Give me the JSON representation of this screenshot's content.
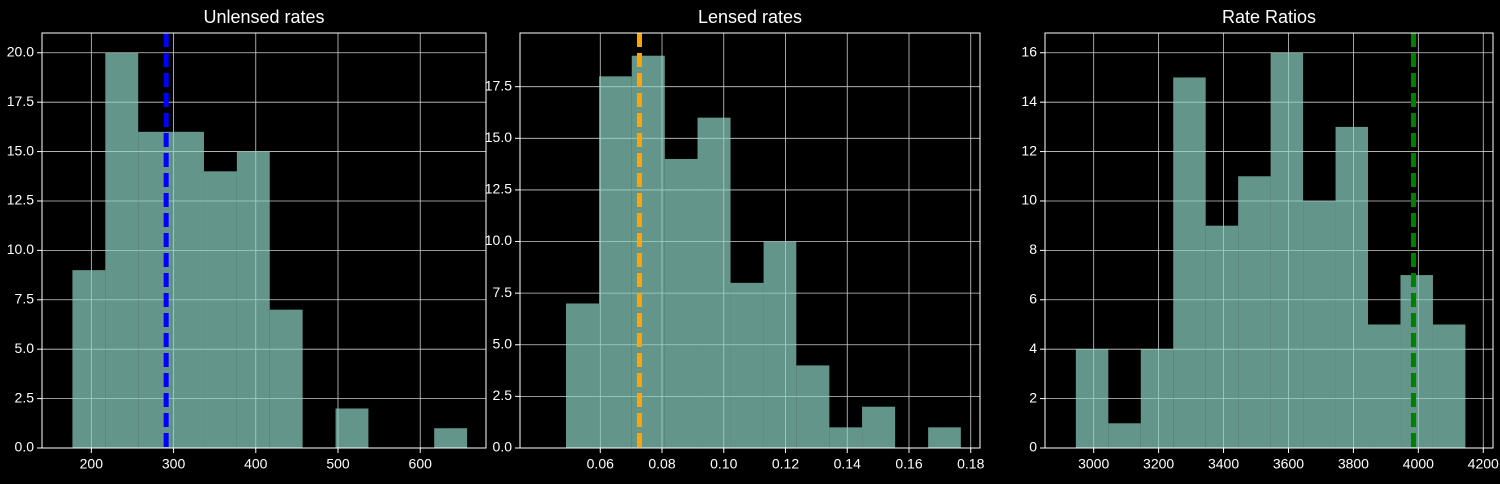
{
  "chart_data": [
    {
      "type": "histogram",
      "title": "Unlensed rates",
      "bins": [
        177,
        217,
        257,
        297,
        337,
        377,
        417,
        457,
        497,
        537,
        577,
        617,
        657
      ],
      "values": [
        9,
        20,
        16,
        16,
        14,
        15,
        7,
        0,
        2,
        0,
        0,
        1
      ],
      "color": "#8fd4c4",
      "xlim": [
        140,
        680
      ],
      "xticks": [
        200,
        300,
        400,
        500,
        600
      ],
      "ylim": [
        0,
        21
      ],
      "yticks": [
        {
          "value": 0,
          "label": "0.0"
        },
        2.5,
        {
          "value": 5,
          "label": "5.0"
        },
        7.5,
        {
          "value": 10,
          "label": "10.0"
        },
        12.5,
        {
          "value": 15,
          "label": "15.0"
        },
        17.5,
        {
          "value": 20,
          "label": "20.0"
        }
      ],
      "grid": true,
      "vline": 291,
      "vline_color": "#0000ff"
    },
    {
      "type": "histogram",
      "title": "Lensed rates",
      "bins": [
        0.0489,
        0.0596,
        0.0702,
        0.0809,
        0.0915,
        0.1022,
        0.1129,
        0.1235,
        0.1342,
        0.1448,
        0.1555,
        0.1662,
        0.1768
      ],
      "values": [
        7,
        18,
        19,
        14,
        16,
        8,
        10,
        4,
        1,
        2,
        0,
        1
      ],
      "color": "#8fd4c4",
      "xlim": [
        0.034,
        0.183
      ],
      "xticks": [
        0.06,
        0.08,
        {
          "value": 0.1,
          "label": "0.10"
        },
        0.12,
        0.14,
        0.16,
        0.18
      ],
      "ylim": [
        0,
        20.1
      ],
      "yticks": [
        {
          "value": 0,
          "label": "0.0"
        },
        2.5,
        {
          "value": 5,
          "label": "5.0"
        },
        7.5,
        {
          "value": 10,
          "label": "10.0"
        },
        12.5,
        {
          "value": 15,
          "label": "15.0"
        },
        17.5
      ],
      "grid": true,
      "vline": 0.0727,
      "vline_color": "#ffa500"
    },
    {
      "type": "histogram",
      "title": "Rate Ratios",
      "bins": [
        2945,
        3045,
        3145,
        3245,
        3345,
        3445,
        3545,
        3645,
        3745,
        3845,
        3945,
        4045,
        4145
      ],
      "values": [
        4,
        1,
        4,
        15,
        9,
        11,
        16,
        10,
        13,
        5,
        7,
        5
      ],
      "color": "#8fd4c4",
      "xlim": [
        2850,
        4230
      ],
      "xticks": [
        3000,
        3200,
        3400,
        3600,
        3800,
        4000,
        4200
      ],
      "ylim": [
        0,
        16.8
      ],
      "yticks": [
        0,
        2,
        4,
        6,
        8,
        10,
        12,
        14,
        16
      ],
      "grid": true,
      "vline": 3985,
      "vline_color": "#008000"
    }
  ]
}
